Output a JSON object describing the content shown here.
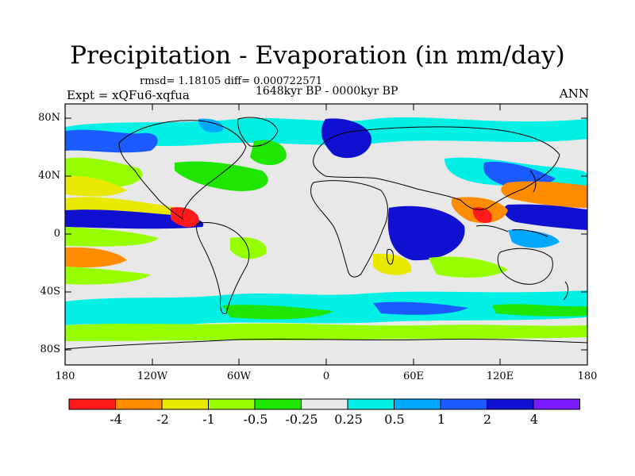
{
  "title": "Precipitation - Evaporation (in mm/day)",
  "stats": "rmsd= 1.18105 diff= 0.000722571",
  "period": "1648kyr BP - 0000kyr BP",
  "experiment": "Expt = xQFu6-xqfua",
  "season": "ANN",
  "axes": {
    "lat_labels": [
      "80N",
      "40N",
      "0",
      "40S",
      "80S"
    ],
    "lon_labels": [
      "180",
      "120W",
      "60W",
      "0",
      "60E",
      "120E",
      "180"
    ]
  },
  "colorbar": {
    "colors": [
      "#ff1a1a",
      "#ff8c00",
      "#e8e800",
      "#96ff00",
      "#1ee600",
      "#e8e8e8",
      "#00f0e6",
      "#00a8ff",
      "#1a5aff",
      "#1010d0",
      "#7a1aff"
    ],
    "labels": [
      "-4",
      "-2",
      "-1",
      "-0.5",
      "-0.25",
      "0.25",
      "0.5",
      "1",
      "2",
      "4"
    ]
  },
  "colors": {
    "land_background": "#e8e8e8",
    "coastline": "#000000"
  }
}
